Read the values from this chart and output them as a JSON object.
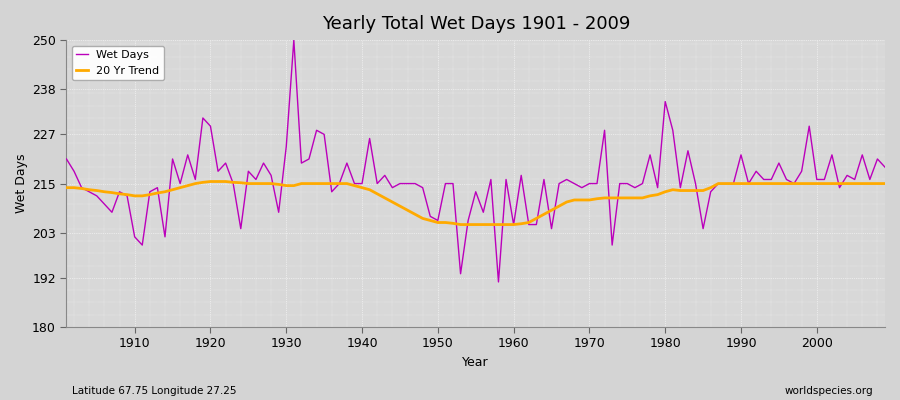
{
  "title": "Yearly Total Wet Days 1901 - 2009",
  "xlabel": "Year",
  "ylabel": "Wet Days",
  "footnote_left": "Latitude 67.75 Longitude 27.25",
  "footnote_right": "worldspecies.org",
  "ylim": [
    180,
    250
  ],
  "yticks": [
    180,
    192,
    203,
    215,
    227,
    238,
    250
  ],
  "xlim": [
    1901,
    2009
  ],
  "xticks": [
    1910,
    1920,
    1930,
    1940,
    1950,
    1960,
    1970,
    1980,
    1990,
    2000
  ],
  "bg_color": "#d8d8d8",
  "plot_bg_color": "#dcdcdc",
  "wet_days_color": "#bb00bb",
  "trend_color": "#ffaa00",
  "years": [
    1901,
    1902,
    1903,
    1904,
    1905,
    1906,
    1907,
    1908,
    1909,
    1910,
    1911,
    1912,
    1913,
    1914,
    1915,
    1916,
    1917,
    1918,
    1919,
    1920,
    1921,
    1922,
    1923,
    1924,
    1925,
    1926,
    1927,
    1928,
    1929,
    1930,
    1931,
    1932,
    1933,
    1934,
    1935,
    1936,
    1937,
    1938,
    1939,
    1940,
    1941,
    1942,
    1943,
    1944,
    1945,
    1946,
    1947,
    1948,
    1949,
    1950,
    1951,
    1952,
    1953,
    1954,
    1955,
    1956,
    1957,
    1958,
    1959,
    1960,
    1961,
    1962,
    1963,
    1964,
    1965,
    1966,
    1967,
    1968,
    1969,
    1970,
    1971,
    1972,
    1973,
    1974,
    1975,
    1976,
    1977,
    1978,
    1979,
    1980,
    1981,
    1982,
    1983,
    1984,
    1985,
    1986,
    1987,
    1988,
    1989,
    1990,
    1991,
    1992,
    1993,
    1994,
    1995,
    1996,
    1997,
    1998,
    1999,
    2000,
    2001,
    2002,
    2003,
    2004,
    2005,
    2006,
    2007,
    2008,
    2009
  ],
  "wet_days": [
    221,
    218,
    214,
    213,
    212,
    210,
    208,
    213,
    212,
    202,
    200,
    213,
    214,
    202,
    221,
    215,
    222,
    216,
    231,
    229,
    218,
    220,
    215,
    204,
    218,
    216,
    220,
    217,
    208,
    224,
    250,
    220,
    221,
    228,
    227,
    213,
    215,
    220,
    215,
    215,
    226,
    215,
    217,
    214,
    215,
    215,
    215,
    214,
    207,
    206,
    215,
    215,
    193,
    206,
    213,
    208,
    216,
    191,
    216,
    205,
    217,
    205,
    205,
    216,
    204,
    215,
    216,
    215,
    214,
    215,
    215,
    228,
    200,
    215,
    215,
    214,
    215,
    222,
    214,
    235,
    228,
    214,
    223,
    215,
    204,
    213,
    215,
    215,
    215,
    222,
    215,
    218,
    216,
    216,
    220,
    216,
    215,
    218,
    229,
    216,
    216,
    222,
    214,
    217,
    216,
    222,
    216,
    221,
    219
  ],
  "trend": [
    214.0,
    214.0,
    213.8,
    213.5,
    213.3,
    213.0,
    212.8,
    212.5,
    212.3,
    212.0,
    212.0,
    212.3,
    212.7,
    213.0,
    213.5,
    214.0,
    214.5,
    215.0,
    215.3,
    215.5,
    215.5,
    215.5,
    215.3,
    215.2,
    215.0,
    215.0,
    215.0,
    215.0,
    214.8,
    214.5,
    214.5,
    215.0,
    215.0,
    215.0,
    215.0,
    215.0,
    215.0,
    215.0,
    214.5,
    214.0,
    213.5,
    212.5,
    211.5,
    210.5,
    209.5,
    208.5,
    207.5,
    206.5,
    206.0,
    205.5,
    205.5,
    205.3,
    205.0,
    205.0,
    205.0,
    205.0,
    205.0,
    205.0,
    205.0,
    205.0,
    205.2,
    205.5,
    206.5,
    207.5,
    208.5,
    209.5,
    210.5,
    211.0,
    211.0,
    211.0,
    211.3,
    211.5,
    211.5,
    211.5,
    211.5,
    211.5,
    211.5,
    212.0,
    212.3,
    213.0,
    213.5,
    213.3,
    213.3,
    213.3,
    213.3,
    214.0,
    215.0,
    215.0,
    215.0,
    215.0,
    215.0,
    215.0,
    215.0,
    215.0,
    215.0,
    215.0,
    215.0,
    215.0,
    215.0,
    215.0,
    215.0,
    215.0,
    215.0,
    215.0,
    215.0,
    215.0,
    215.0,
    215.0,
    215.0
  ]
}
